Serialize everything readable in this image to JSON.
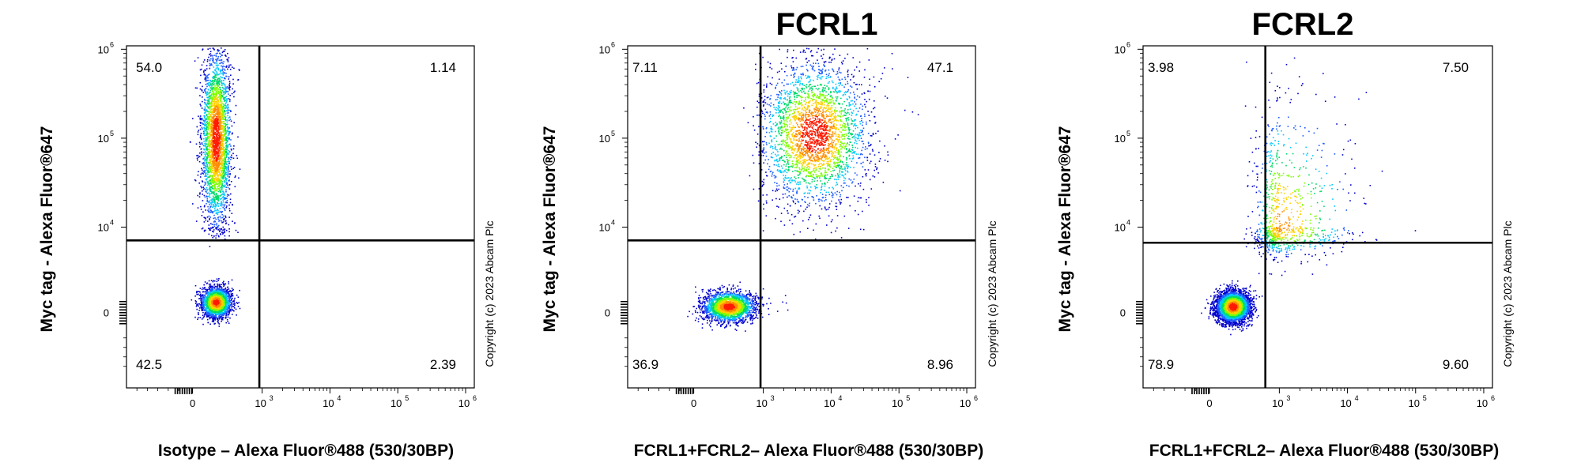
{
  "chart_data": [
    {
      "type": "scatter",
      "plot": "flow-cytometry-density",
      "title": "",
      "xlabel": "Isotype – Alexa Fluor®488 (530/30BP)",
      "ylabel": "Myc tag - Alexa Fluor®647",
      "copyright": "Copyright (c) 2023 Abcam Plc",
      "x_scale": "biexponential",
      "y_scale": "biexponential",
      "x_ticks": [
        {
          "base": "0",
          "exp": ""
        },
        {
          "base": "10",
          "exp": "3"
        },
        {
          "base": "10",
          "exp": "4"
        },
        {
          "base": "10",
          "exp": "5"
        },
        {
          "base": "10",
          "exp": "6"
        }
      ],
      "y_ticks": [
        {
          "base": "0",
          "exp": ""
        },
        {
          "base": "10",
          "exp": "4"
        },
        {
          "base": "10",
          "exp": "5"
        },
        {
          "base": "10",
          "exp": "6"
        }
      ],
      "quadrants": {
        "upper_left": "54.0",
        "upper_right": "1.14",
        "lower_left": "42.5",
        "lower_right": "2.39"
      },
      "gate_position": {
        "x_log": 2.88,
        "y_log": 3.38
      },
      "populations": [
        {
          "name": "upper",
          "x_log": 1.0,
          "y_log": 5.0,
          "sd_x": 0.32,
          "sd_y": 0.5,
          "fraction": 0.54
        },
        {
          "name": "lower",
          "x_log": 1.0,
          "y_log": 0.5,
          "sd_x": 0.32,
          "sd_y": 0.35,
          "fraction": 0.43
        }
      ]
    },
    {
      "type": "scatter",
      "plot": "flow-cytometry-density",
      "title": "FCRL1",
      "xlabel": "FCRL1+FCRL2– Alexa Fluor®488 (530/30BP)",
      "ylabel": "Myc tag - Alexa Fluor®647",
      "copyright": "Copyright (c) 2023 Abcam Plc",
      "x_scale": "biexponential",
      "y_scale": "biexponential",
      "x_ticks": [
        {
          "base": "0",
          "exp": ""
        },
        {
          "base": "10",
          "exp": "3"
        },
        {
          "base": "10",
          "exp": "4"
        },
        {
          "base": "10",
          "exp": "5"
        },
        {
          "base": "10",
          "exp": "6"
        }
      ],
      "y_ticks": [
        {
          "base": "0",
          "exp": ""
        },
        {
          "base": "10",
          "exp": "4"
        },
        {
          "base": "10",
          "exp": "5"
        },
        {
          "base": "10",
          "exp": "6"
        }
      ],
      "quadrants": {
        "upper_left": "7.11",
        "upper_right": "47.1",
        "lower_left": "36.9",
        "lower_right": "8.96"
      },
      "gate_position": {
        "x_log": 2.88,
        "y_log": 3.38
      },
      "populations": [
        {
          "name": "high",
          "x_log": 3.75,
          "y_log": 5.05,
          "sd_x": 0.4,
          "sd_y": 0.4,
          "fraction": 0.55
        },
        {
          "name": "low",
          "x_log": 1.5,
          "y_log": 0.3,
          "sd_x": 0.55,
          "sd_y": 0.35,
          "fraction": 0.45
        }
      ]
    },
    {
      "type": "scatter",
      "plot": "flow-cytometry-density",
      "title": "FCRL2",
      "xlabel": "FCRL1+FCRL2– Alexa Fluor®488 (530/30BP)",
      "ylabel": "Myc tag - Alexa Fluor®647",
      "copyright": "Copyright (c) 2023 Abcam Plc",
      "x_scale": "biexponential",
      "y_scale": "biexponential",
      "x_ticks": [
        {
          "base": "0",
          "exp": ""
        },
        {
          "base": "10",
          "exp": "3"
        },
        {
          "base": "10",
          "exp": "4"
        },
        {
          "base": "10",
          "exp": "5"
        },
        {
          "base": "10",
          "exp": "6"
        }
      ],
      "y_ticks": [
        {
          "base": "0",
          "exp": ""
        },
        {
          "base": "10",
          "exp": "4"
        },
        {
          "base": "10",
          "exp": "5"
        },
        {
          "base": "10",
          "exp": "6"
        }
      ],
      "quadrants": {
        "upper_left": "3.98",
        "upper_right": "7.50",
        "lower_left": "78.9",
        "lower_right": "9.60"
      },
      "gate_position": {
        "x_log": 2.4,
        "y_log": 3.27
      },
      "populations": [
        {
          "name": "low",
          "x_log": 1.0,
          "y_log": 0.3,
          "sd_x": 0.35,
          "sd_y": 0.35,
          "fraction": 0.82
        },
        {
          "name": "diag",
          "x_log": 3.0,
          "y_log": 4.0,
          "sd_x": 0.55,
          "sd_y": 0.7,
          "fraction": 0.18
        }
      ]
    }
  ]
}
